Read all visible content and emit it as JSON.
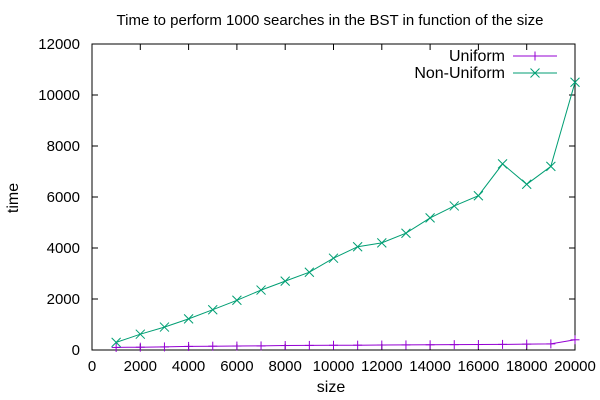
{
  "chart_data": {
    "type": "line",
    "title": "Time to perform 1000 searches in the BST in function of the size",
    "xlabel": "size",
    "ylabel": "time",
    "xlim": [
      0,
      20000
    ],
    "ylim": [
      0,
      12000
    ],
    "xticks": [
      0,
      2000,
      4000,
      6000,
      8000,
      10000,
      12000,
      14000,
      16000,
      18000,
      20000
    ],
    "yticks": [
      0,
      2000,
      4000,
      6000,
      8000,
      10000,
      12000
    ],
    "grid": false,
    "legend_position": "top-right",
    "x": [
      1000,
      2000,
      3000,
      4000,
      5000,
      6000,
      7000,
      8000,
      9000,
      10000,
      11000,
      12000,
      13000,
      14000,
      15000,
      16000,
      17000,
      18000,
      19000,
      20000
    ],
    "series": [
      {
        "name": "Uniform",
        "color": "#9400d3",
        "marker": "plus",
        "values": [
          100,
          110,
          120,
          140,
          150,
          155,
          160,
          175,
          180,
          185,
          190,
          195,
          200,
          205,
          210,
          215,
          220,
          230,
          240,
          400
        ]
      },
      {
        "name": "Non-Uniform",
        "color": "#009e73",
        "marker": "cross",
        "values": [
          300,
          620,
          900,
          1220,
          1580,
          1950,
          2350,
          2700,
          3050,
          3600,
          4050,
          4200,
          4580,
          5180,
          5650,
          6050,
          7300,
          6500,
          7200,
          10500
        ]
      }
    ]
  }
}
